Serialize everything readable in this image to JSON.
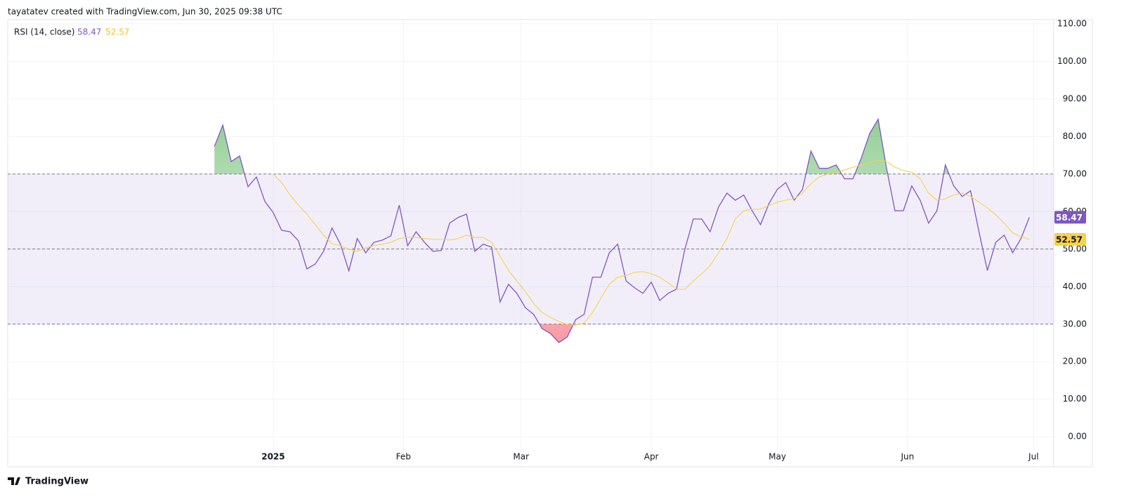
{
  "header": {
    "text": "tayatatev created with TradingView.com, Jun 30, 2025 09:38 UTC"
  },
  "footer": {
    "logo_text": "TradingView"
  },
  "chart_data": {
    "type": "line",
    "indicator": "RSI (14, close)",
    "x": [
      -14,
      -12,
      -10,
      -8,
      -6,
      -4,
      -2,
      0,
      2,
      4,
      6,
      8,
      10,
      12,
      14,
      16,
      18,
      20,
      22,
      24,
      26,
      28,
      30,
      32,
      34,
      36,
      38,
      40,
      42,
      44,
      46,
      48,
      50,
      52,
      54,
      56,
      58,
      60,
      62,
      64,
      66,
      68,
      70,
      72,
      74,
      76,
      78,
      80,
      82,
      84,
      86,
      88,
      90,
      92,
      94,
      96,
      98,
      100,
      102,
      104,
      106,
      108,
      110,
      112,
      114,
      116,
      118,
      120,
      122,
      124,
      126,
      128,
      130,
      132,
      134,
      136,
      138,
      140,
      142,
      144,
      146,
      148,
      150,
      152,
      154,
      156,
      158,
      160,
      162,
      164,
      166,
      168,
      170,
      172,
      174,
      176,
      178,
      180
    ],
    "series": [
      {
        "color": "#7e57c2",
        "values": [
          77.3,
          83,
          73.3,
          74.8,
          66.6,
          69.2,
          62.7,
          59.7,
          55,
          54.6,
          52.2,
          44.7,
          46,
          49.4,
          55.6,
          51.3,
          44.2,
          52.8,
          49,
          51.8,
          52.4,
          53.5,
          61.7,
          50.9,
          54.6,
          51.8,
          49.4,
          49.6,
          56.9,
          58.4,
          59.3,
          49.4,
          51.3,
          50.5,
          35.9,
          40.6,
          38.2,
          34.4,
          32.6,
          28.8,
          27.5,
          25.1,
          26.6,
          31.2,
          32.6,
          42.5,
          42.5,
          49,
          51.3,
          41.5,
          39.7,
          38.2,
          41.2,
          36.3,
          38.2,
          39.3,
          50,
          58,
          58,
          54.6,
          61.2,
          64.9,
          63,
          64.4,
          60.2,
          56.5,
          62.1,
          65.9,
          67.7,
          63,
          65.9,
          76.1,
          71.5,
          71.5,
          72.4,
          68.7,
          68.7,
          74.3,
          80.8,
          84.6,
          71.5,
          60.2,
          60.2,
          66.8,
          63,
          56.9,
          60.2,
          72.4,
          66.8,
          64,
          65.5,
          54.6,
          44.3,
          51.8,
          53.7,
          49,
          52.8,
          58.47
        ]
      },
      {
        "color": "#f7d24a",
        "values": [
          null,
          null,
          null,
          null,
          null,
          null,
          null,
          70,
          67.7,
          64.4,
          61.7,
          59.3,
          56.5,
          53.7,
          51.4,
          50.9,
          50,
          49.4,
          50.3,
          50.9,
          51.3,
          51.8,
          52.8,
          53.1,
          53.1,
          52.8,
          52.6,
          52.6,
          52.4,
          52.8,
          53.7,
          53.1,
          53.1,
          51.8,
          48.1,
          44.3,
          41.5,
          38.7,
          35.5,
          33.1,
          31.8,
          30.7,
          29.9,
          29.7,
          30.3,
          33.1,
          36.9,
          40.6,
          42.5,
          43,
          43.8,
          44,
          43.4,
          42.5,
          41,
          39.3,
          39.3,
          41.5,
          43.4,
          45.6,
          49,
          52.8,
          58,
          60.2,
          60.6,
          60.6,
          61.6,
          62.5,
          63,
          63.4,
          64.9,
          67.4,
          69.2,
          70,
          70.5,
          71.1,
          71.8,
          72.4,
          73,
          73.7,
          73.3,
          71.8,
          70.9,
          70.5,
          68.7,
          64.9,
          63,
          63.4,
          64.4,
          64.9,
          64,
          62.5,
          61,
          59.1,
          56.9,
          54.3,
          53.3,
          52.57
        ]
      }
    ],
    "bands": {
      "upper": 70,
      "middle": 50,
      "lower": 30
    },
    "xlim": [
      -63.2,
      185.8
    ],
    "xticks": [
      {
        "value": 0,
        "label": "2025"
      },
      {
        "value": 31,
        "label": "Feb"
      },
      {
        "value": 59,
        "label": "Mar"
      },
      {
        "value": 90,
        "label": "Apr"
      },
      {
        "value": 120,
        "label": "May"
      },
      {
        "value": 151,
        "label": "Jun"
      },
      {
        "value": 181,
        "label": "Jul"
      }
    ],
    "ylim": [
      -8,
      111.1
    ],
    "yticks": [
      {
        "value": 0,
        "label": "0.00"
      },
      {
        "value": 10,
        "label": "10.00"
      },
      {
        "value": 20,
        "label": "20.00"
      },
      {
        "value": 30,
        "label": "30.00"
      },
      {
        "value": 40,
        "label": "40.00"
      },
      {
        "value": 50,
        "label": "50.00"
      },
      {
        "value": 60,
        "label": "60.00"
      },
      {
        "value": 70,
        "label": "70.00"
      },
      {
        "value": 80,
        "label": "80.00"
      },
      {
        "value": 90,
        "label": "90.00"
      },
      {
        "value": 100,
        "label": "100.00"
      },
      {
        "value": 110,
        "label": "110.00"
      }
    ],
    "grid": true
  }
}
